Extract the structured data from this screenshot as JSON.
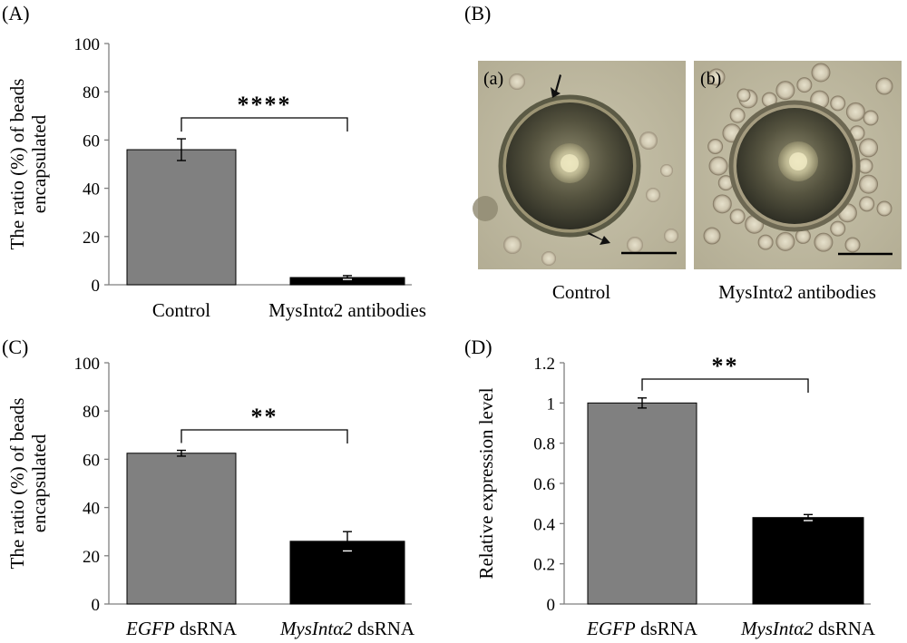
{
  "panels": [
    {
      "id": "A",
      "label": "(A)"
    },
    {
      "id": "B",
      "label": "(B)"
    },
    {
      "id": "C",
      "label": "(C)"
    },
    {
      "id": "D",
      "label": "(D)"
    }
  ],
  "micrographs": [
    {
      "label": "(a)",
      "caption": "Control"
    },
    {
      "label": "(b)",
      "caption": "MysIntα2 antibodies"
    }
  ],
  "colors": {
    "control_bar": "#808080",
    "treatment_bar": "#000000",
    "axis": "#7f7f7f"
  },
  "chart_data": [
    {
      "panel": "A",
      "type": "bar",
      "categories": [
        "Control",
        "MysIntα2 antibodies"
      ],
      "category_parts": [
        [
          {
            "text": "Control",
            "italic": false
          }
        ],
        [
          {
            "text": "MysIntα2 antibodies",
            "italic": false
          }
        ]
      ],
      "values": [
        56,
        3
      ],
      "errors": [
        4.5,
        0.8
      ],
      "ylabel_lines": [
        "The ratio (%) of beads",
        "encapsulated"
      ],
      "ylim": [
        0,
        100
      ],
      "yticks": [
        "0",
        "20",
        "40",
        "60",
        "80",
        "100"
      ],
      "significance": "****",
      "grid": false
    },
    {
      "panel": "C",
      "type": "bar",
      "categories": [
        "EGFP dsRNA",
        "MysIntα2 dsRNA"
      ],
      "category_parts": [
        [
          {
            "text": "EGFP",
            "italic": true
          },
          {
            "text": " dsRNA",
            "italic": false
          }
        ],
        [
          {
            "text": "MysIntα2",
            "italic": true
          },
          {
            "text": " dsRNA",
            "italic": false
          }
        ]
      ],
      "values": [
        62.5,
        26
      ],
      "errors": [
        1.2,
        4
      ],
      "ylabel_lines": [
        "The ratio (%) of beads",
        "encapsulated"
      ],
      "ylim": [
        0,
        100
      ],
      "yticks": [
        "0",
        "20",
        "40",
        "60",
        "80",
        "100"
      ],
      "significance": "**",
      "grid": false
    },
    {
      "panel": "D",
      "type": "bar",
      "categories": [
        "EGFP dsRNA",
        "MysIntα2 dsRNA"
      ],
      "category_parts": [
        [
          {
            "text": "EGFP",
            "italic": true
          },
          {
            "text": " dsRNA",
            "italic": false
          }
        ],
        [
          {
            "text": "MysIntα2",
            "italic": true
          },
          {
            "text": " dsRNA",
            "italic": false
          }
        ]
      ],
      "values": [
        1.0,
        0.43
      ],
      "errors": [
        0.025,
        0.015
      ],
      "ylabel_lines": [
        "Relative expression level"
      ],
      "ylim": [
        0,
        1.2
      ],
      "yticks": [
        "0",
        "0.2",
        "0.4",
        "0.6",
        "0.8",
        "1",
        "1.2"
      ],
      "significance": "**",
      "grid": false
    }
  ]
}
